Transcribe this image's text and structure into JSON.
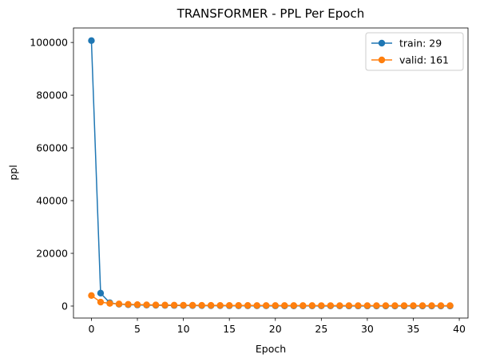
{
  "chart_data": {
    "type": "line",
    "title": "TRANSFORMER - PPL Per Epoch",
    "xlabel": "Epoch",
    "ylabel": "ppl",
    "xlim": [
      -1.95,
      40.95
    ],
    "ylim": [
      -4550,
      105500
    ],
    "xticks": [
      0,
      5,
      10,
      15,
      20,
      25,
      30,
      35,
      40
    ],
    "yticks": [
      0,
      20000,
      40000,
      60000,
      80000,
      100000
    ],
    "grid": false,
    "legend_position": "top-right",
    "x": [
      0,
      1,
      2,
      3,
      4,
      5,
      6,
      7,
      8,
      9,
      10,
      11,
      12,
      13,
      14,
      15,
      16,
      17,
      18,
      19,
      20,
      21,
      22,
      23,
      24,
      25,
      26,
      27,
      28,
      29,
      30,
      31,
      32,
      33,
      34,
      35,
      36,
      37,
      38,
      39
    ],
    "series": [
      {
        "name": "train: 29",
        "color": "#1f77b4",
        "values": [
          100700,
          4900,
          1250,
          700,
          520,
          420,
          350,
          300,
          260,
          230,
          200,
          180,
          160,
          145,
          130,
          120,
          110,
          100,
          92,
          85,
          78,
          72,
          66,
          61,
          57,
          53,
          50,
          47,
          44,
          42,
          40,
          38,
          36,
          34,
          33,
          32,
          31,
          30,
          29.5,
          29
        ]
      },
      {
        "name": "valid: 161",
        "color": "#ff7f0e",
        "values": [
          4000,
          1500,
          1000,
          800,
          650,
          550,
          480,
          420,
          380,
          350,
          320,
          300,
          280,
          265,
          250,
          240,
          230,
          222,
          215,
          208,
          202,
          197,
          192,
          188,
          184,
          180,
          178,
          176,
          174,
          172,
          170,
          168,
          167,
          166,
          165,
          164,
          163,
          162,
          161.5,
          161
        ]
      }
    ]
  }
}
